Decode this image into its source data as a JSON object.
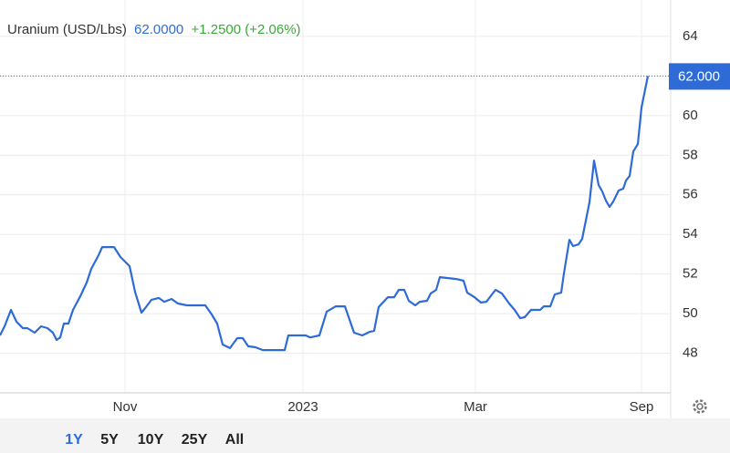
{
  "chart_data": {
    "type": "line",
    "title": "Uranium (USD/Lbs)",
    "price": "62.0000",
    "change": "+1.2500 (+2.06%)",
    "last_label": {
      "value": 62,
      "label": "62.000"
    },
    "x": [
      0,
      5,
      12,
      18,
      25,
      30,
      38,
      45,
      52,
      58,
      62,
      66,
      70,
      75,
      80,
      88,
      95,
      100,
      108,
      112,
      120,
      125,
      132,
      142,
      148,
      155,
      160,
      166,
      174,
      180,
      188,
      195,
      205,
      225,
      232,
      238,
      244,
      252,
      260,
      266,
      272,
      280,
      288,
      312,
      316,
      335,
      340,
      350,
      358,
      368,
      378,
      388,
      397,
      405,
      410,
      415,
      425,
      432,
      437,
      443,
      448,
      455,
      460,
      468,
      472,
      478,
      482,
      500,
      508,
      512,
      520,
      527,
      533,
      543,
      550,
      558,
      564,
      570,
      575,
      582,
      592,
      596,
      603,
      608,
      615,
      618,
      624,
      628,
      634,
      638,
      642,
      646,
      651,
      656,
      660,
      664,
      668,
      672,
      678,
      683,
      686,
      690,
      694,
      699,
      703,
      710
    ],
    "series": [
      {
        "name": "Uranium",
        "color": "#2e6bd6",
        "values": [
          48.9,
          49.36,
          50.19,
          49.6,
          49.27,
          49.27,
          49.04,
          49.36,
          49.27,
          49.04,
          48.67,
          48.8,
          49.5,
          49.5,
          50.19,
          50.88,
          51.57,
          52.26,
          52.95,
          53.36,
          53.36,
          53.36,
          52.86,
          52.4,
          51.1,
          50.05,
          50.33,
          50.7,
          50.79,
          50.6,
          50.74,
          50.51,
          50.42,
          50.42,
          49.96,
          49.5,
          48.44,
          48.26,
          48.76,
          48.76,
          48.35,
          48.3,
          48.16,
          48.16,
          48.9,
          48.9,
          48.8,
          48.9,
          50.1,
          50.37,
          50.37,
          49.04,
          48.9,
          49.08,
          49.13,
          50.33,
          50.83,
          50.83,
          51.2,
          51.2,
          50.65,
          50.42,
          50.6,
          50.65,
          51.02,
          51.2,
          51.84,
          51.75,
          51.66,
          51.06,
          50.83,
          50.56,
          50.6,
          51.2,
          51.02,
          50.51,
          50.19,
          49.77,
          49.82,
          50.19,
          50.19,
          50.37,
          50.37,
          50.97,
          51.06,
          52.03,
          53.73,
          53.41,
          53.5,
          53.78,
          54.7,
          55.62,
          57.73,
          56.49,
          56.17,
          55.71,
          55.39,
          55.66,
          56.22,
          56.31,
          56.72,
          56.95,
          58.19,
          58.56,
          60.4,
          62.0
        ]
      }
    ],
    "xlim": [
      0,
      735
    ],
    "xticks": [
      {
        "value": 137,
        "label": "Nov"
      },
      {
        "value": 332,
        "label": "2023"
      },
      {
        "value": 521,
        "label": "Mar"
      },
      {
        "value": 703,
        "label": "Sep"
      }
    ],
    "ylim": [
      46,
      65.7
    ],
    "yticks": [
      48,
      50,
      52,
      54,
      56,
      58,
      60,
      62,
      64
    ],
    "grid": true,
    "ranges": [
      "1Y",
      "5Y",
      "10Y",
      "25Y",
      "All"
    ],
    "active_range": "1Y"
  }
}
